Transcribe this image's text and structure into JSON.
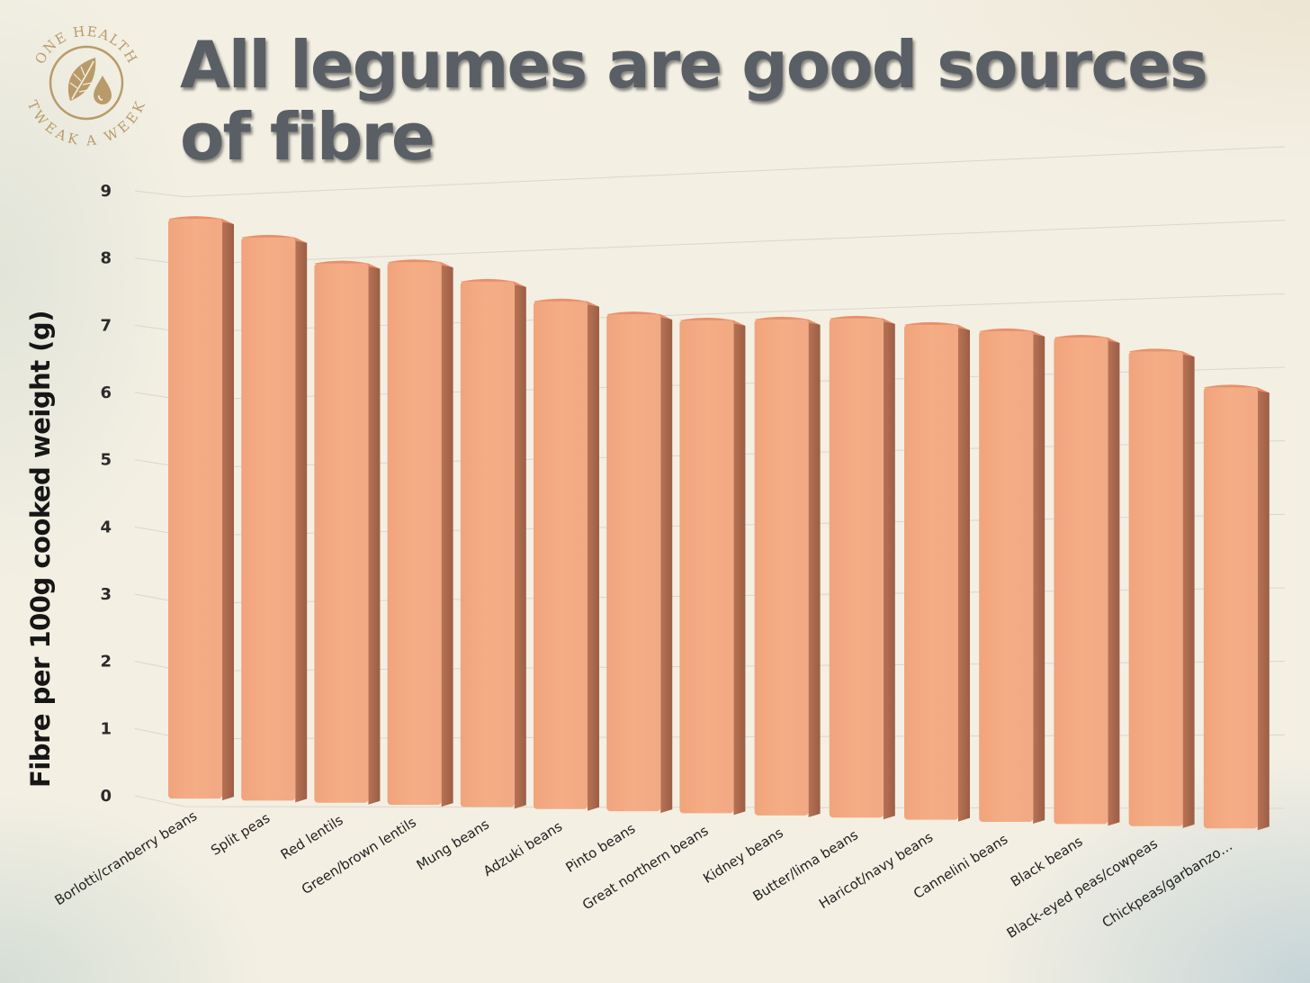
{
  "title": "All legumes are good sources of fibre",
  "logo": {
    "text_top": "ONE HEALTH",
    "text_bottom": "TWEAK A WEEK",
    "icon": "leaf-and-water-drop-icon",
    "color": "#b99b6a"
  },
  "chart_data": {
    "type": "bar",
    "title": "All legumes are good sources of fibre",
    "xlabel": "",
    "ylabel": "Fibre per 100g cooked weight (g)",
    "ylim": [
      0,
      9
    ],
    "yticks": [
      0,
      1,
      2,
      3,
      4,
      5,
      6,
      7,
      8,
      9
    ],
    "grid": true,
    "legend": "none",
    "bar_color": "#f5ad85",
    "categories": [
      "Borlotti/cranberry beans",
      "Split peas",
      "Red lentils",
      "Green/brown lentils",
      "Mung beans",
      "Adzuki beans",
      "Pinto beans",
      "Great northern beans",
      "Kidney beans",
      "Butter/lima beans",
      "Haricot/navy beans",
      "Cannelini beans",
      "Black beans",
      "Black-eyed peas/cowpeas",
      "Chickpeas/garbanzo…"
    ],
    "values": [
      8.6,
      8.3,
      7.9,
      7.9,
      7.6,
      7.3,
      7.1,
      7.0,
      7.0,
      7.0,
      6.9,
      6.8,
      6.7,
      6.5,
      6.0
    ]
  }
}
